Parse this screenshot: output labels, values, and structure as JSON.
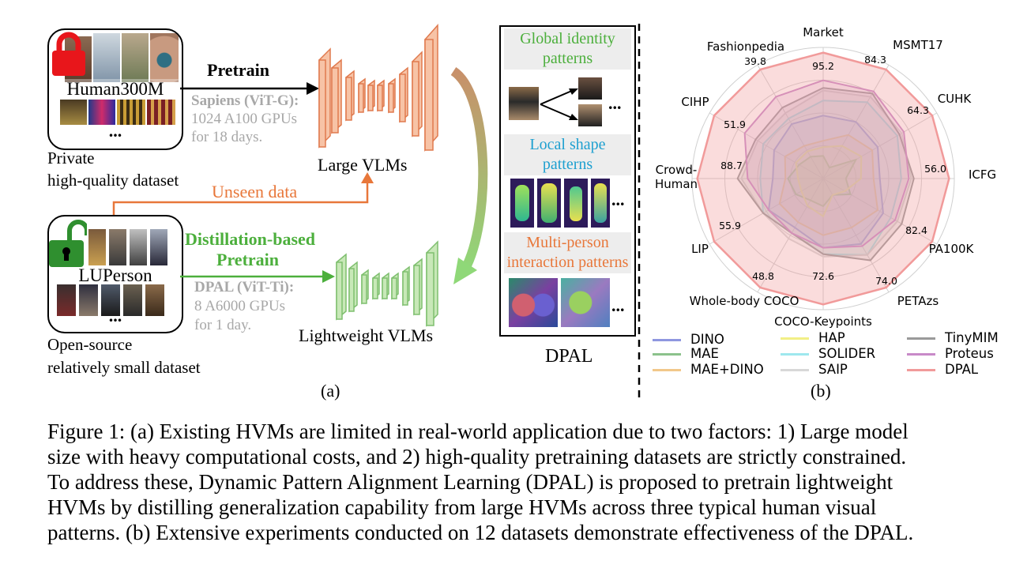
{
  "left_panel": {
    "private_dataset_name": "Human300M",
    "private_dataset_caption_line1": "Private",
    "private_dataset_caption_line2": "high-quality dataset",
    "public_dataset_name": "LUPerson",
    "public_dataset_caption_line1": "Open-source",
    "public_dataset_caption_line2": "relatively small dataset",
    "ellipsis": "...",
    "pretrain_label": "Pretrain",
    "sapiens_line1": "Sapiens (ViT-G):",
    "sapiens_line2": "1024 A100 GPUs",
    "sapiens_line3": "for 18 days.",
    "large_vlms": "Large VLMs",
    "unseen_data": "Unseen data",
    "distill_line1": "Distillation-based",
    "distill_line2": "Pretrain",
    "dpal_line1": "DPAL (ViT-Ti):",
    "dpal_line2": "8 A6000 GPUs",
    "dpal_line3": "for 1 day.",
    "lightweight_vlms": "Lightweight VLMs",
    "sub_label": "(a)"
  },
  "patterns_panel": {
    "global_line1": "Global identity",
    "global_line2": "patterns",
    "local_line1": "Local shape",
    "local_line2": "patterns",
    "multi_line1": "Multi-person",
    "multi_line2": "interaction patterns",
    "ellipsis": "...",
    "title": "DPAL",
    "colors": {
      "global": "#4caf3c",
      "local": "#1ea0d0",
      "multi": "#e8773a"
    }
  },
  "radar": {
    "sub_label": "(b)",
    "axes": [
      {
        "name": "Market",
        "max_label": "95.2"
      },
      {
        "name": "MSMT17",
        "max_label": "84.3"
      },
      {
        "name": "CUHK",
        "max_label": "64.3"
      },
      {
        "name": "ICFG",
        "max_label": "56.0"
      },
      {
        "name": "PA100K",
        "max_label": "82.4"
      },
      {
        "name": "PETAzs",
        "max_label": "74.0"
      },
      {
        "name": "COCO-Keypoints",
        "max_label": "72.6"
      },
      {
        "name": "Whole-body COCO",
        "max_label": "48.8"
      },
      {
        "name": "LIP",
        "max_label": "55.9"
      },
      {
        "name": "Crowd-Human",
        "max_label": "88.7"
      },
      {
        "name": "CIHP",
        "max_label": "51.9"
      },
      {
        "name": "Fashionpedia",
        "max_label": "39.8"
      }
    ],
    "series": [
      {
        "name": "DINO",
        "color": "#8f97e0",
        "values": [
          0.5,
          0.52,
          0.5,
          0.45,
          0.55,
          0.6,
          0.55,
          0.45,
          0.5,
          0.4,
          0.45,
          0.5
        ]
      },
      {
        "name": "MAE",
        "color": "#8cc28c",
        "values": [
          0.18,
          0.1,
          0.3,
          0.18,
          0.25,
          0.15,
          0.22,
          0.2,
          0.25,
          0.28,
          0.22,
          0.2
        ]
      },
      {
        "name": "MAE+DINO",
        "color": "#f2c88a",
        "values": [
          0.3,
          0.4,
          0.45,
          0.4,
          0.5,
          0.45,
          0.45,
          0.4,
          0.4,
          0.3,
          0.35,
          0.3
        ]
      },
      {
        "name": "HAP",
        "color": "#f2ef86",
        "values": [
          0.25,
          0.3,
          0.35,
          0.3,
          0.2,
          0.15,
          0.3,
          0.25,
          0.2,
          0.2,
          0.25,
          0.25
        ]
      },
      {
        "name": "SOLIDER",
        "color": "#9ee8ee",
        "values": [
          0.62,
          0.7,
          0.68,
          0.62,
          0.62,
          0.7,
          0.6,
          0.5,
          0.55,
          0.5,
          0.55,
          0.55
        ]
      },
      {
        "name": "SAIP",
        "color": "#d8d8d8",
        "values": [
          0.7,
          0.75,
          0.72,
          0.7,
          0.68,
          0.7,
          0.62,
          0.55,
          0.55,
          0.65,
          0.6,
          0.6
        ]
      },
      {
        "name": "TinyMIM",
        "color": "#9a9a9a",
        "values": [
          0.72,
          0.78,
          0.7,
          0.72,
          0.72,
          0.75,
          0.6,
          0.5,
          0.55,
          0.68,
          0.62,
          0.65
        ]
      },
      {
        "name": "Proteus",
        "color": "#c88ac8",
        "values": [
          0.78,
          0.8,
          0.74,
          0.68,
          0.66,
          0.62,
          0.55,
          0.5,
          0.5,
          0.6,
          0.72,
          0.75
        ]
      },
      {
        "name": "DPAL",
        "color": "#f19a9a",
        "values": [
          1.0,
          1.0,
          1.0,
          1.0,
          1.0,
          1.0,
          1.0,
          1.0,
          1.0,
          1.0,
          1.0,
          1.0
        ]
      }
    ]
  },
  "caption": {
    "line1": "Figure 1: (a) Existing HVMs are limited in real-world application due to two factors: 1) Large model",
    "line2": "size with heavy computational costs, and 2) high-quality pretraining datasets are strictly constrained.",
    "line3": "To address these, Dynamic Pattern Alignment Learning (DPAL) is proposed to pretrain lightweight",
    "line4": "HVMs by distilling generalization capability from large HVMs across three typical human visual",
    "line5": "patterns. (b) Extensive experiments conducted on 12 datasets demonstrate effectiveness of the DPAL."
  }
}
